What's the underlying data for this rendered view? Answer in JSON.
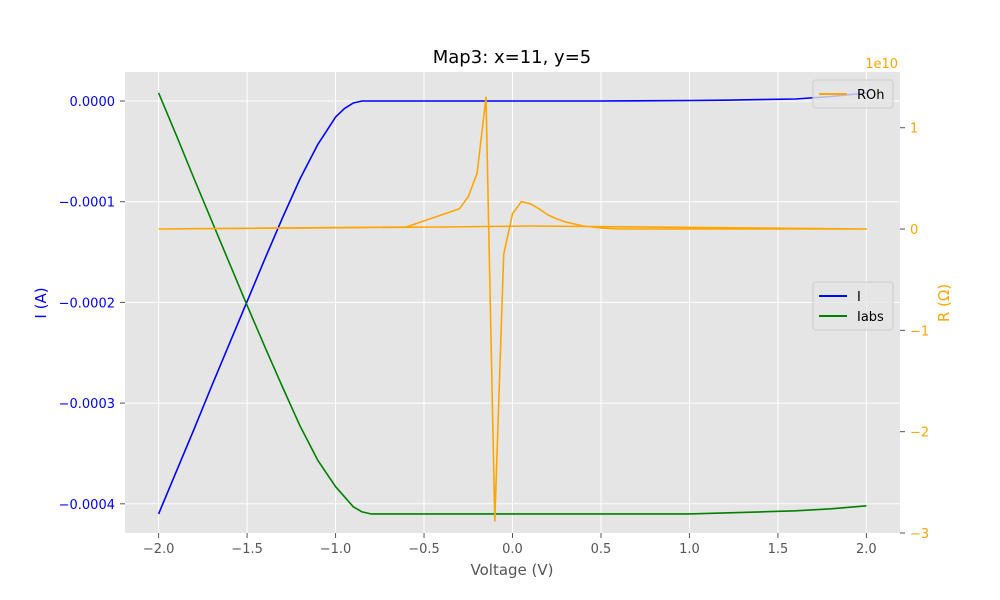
{
  "chart_data": {
    "type": "line",
    "title": "Map3: x=11, y=5",
    "xlabel": "Voltage (V)",
    "ylabel_left": "I (A)",
    "ylabel_right": "R (Ω)",
    "right_axis_multiplier": "1e10",
    "xlim": [
      -2.19,
      2.19
    ],
    "ylim_left": [
      -0.000429,
      2.88e-05
    ],
    "ylim_right": [
      -30000000000.0,
      15500000000.0
    ],
    "x_ticks": [
      "−2.0",
      "−1.5",
      "−1.0",
      "−0.5",
      "0.0",
      "0.5",
      "1.0",
      "1.5",
      "2.0"
    ],
    "x_tick_values": [
      -2.0,
      -1.5,
      -1.0,
      -0.5,
      0.0,
      0.5,
      1.0,
      1.5,
      2.0
    ],
    "left_ticks": [
      "0.0000",
      "−0.0001",
      "−0.0002",
      "−0.0003",
      "−0.0004"
    ],
    "left_tick_values": [
      0.0,
      -0.0001,
      -0.0002,
      -0.0003,
      -0.0004
    ],
    "right_ticks": [
      "1",
      "0",
      "−1",
      "−2",
      "−3"
    ],
    "right_tick_values": [
      10000000000.0,
      0.0,
      -10000000000.0,
      -20000000000.0,
      -30000000000.0
    ],
    "grid": true,
    "legend_left": {
      "placement": "center-right",
      "entries": [
        "I",
        "Iabs"
      ]
    },
    "legend_right": {
      "placement": "top-right",
      "entries": [
        "ROh"
      ]
    },
    "colors": {
      "I": "#0000ff",
      "Iabs": "#008000",
      "ROh": "#ffa500",
      "background": "#e5e5e5",
      "grid": "#ffffff"
    },
    "series": [
      {
        "name": "I",
        "axis": "left",
        "color": "#0000ff",
        "x": [
          -2.0,
          -1.9,
          -1.8,
          -1.7,
          -1.6,
          -1.5,
          -1.4,
          -1.3,
          -1.2,
          -1.1,
          -1.0,
          -0.95,
          -0.9,
          -0.85,
          -0.8,
          -0.75,
          -0.7,
          -0.5,
          0.0,
          0.5,
          1.0,
          1.2,
          1.4,
          1.6,
          1.8,
          2.0
        ],
        "y": [
          -0.00041,
          -0.000368,
          -0.000326,
          -0.000283,
          -0.000241,
          -0.000199,
          -0.000157,
          -0.000116,
          -7.7e-05,
          -4.3e-05,
          -1.6e-05,
          -7.5e-06,
          -2e-06,
          0.0,
          0.0,
          0.0,
          0.0,
          0.0,
          0.0,
          0.0,
          5e-07,
          8e-07,
          1.4e-06,
          2e-06,
          4.5e-06,
          8e-06
        ]
      },
      {
        "name": "Iabs",
        "axis": "left",
        "color": "#008000",
        "x": [
          -2.0,
          -1.9,
          -1.8,
          -1.7,
          -1.6,
          -1.5,
          -1.4,
          -1.3,
          -1.2,
          -1.1,
          -1.0,
          -0.9,
          -0.85,
          -0.8,
          -0.75,
          -0.7,
          -0.5,
          0.0,
          0.5,
          1.0,
          1.2,
          1.4,
          1.6,
          1.8,
          2.0
        ],
        "y": [
          8e-06,
          -3.4e-05,
          -7.7e-05,
          -0.000119,
          -0.000161,
          -0.000203,
          -0.000244,
          -0.000284,
          -0.000323,
          -0.000357,
          -0.000383,
          -0.000403,
          -0.000408,
          -0.00041,
          -0.00041,
          -0.00041,
          -0.00041,
          -0.00041,
          -0.00041,
          -0.00041,
          -0.000409,
          -0.000408,
          -0.000407,
          -0.000405,
          -0.000402
        ]
      },
      {
        "name": "ROh",
        "axis": "right",
        "color": "#ffa500",
        "x": [
          -2.0,
          -0.6,
          -0.5,
          -0.4,
          -0.3,
          -0.25,
          -0.2,
          -0.15,
          -0.1,
          -0.05,
          0.0,
          0.05,
          0.1,
          0.15,
          0.2,
          0.25,
          0.3,
          0.35,
          0.4,
          0.5,
          0.6,
          0.8,
          1.0,
          2.0,
          0.1,
          -0.4,
          -2.0
        ],
        "y": [
          0.0,
          200000000.0,
          800000000.0,
          1400000000.0,
          2000000000.0,
          3200000000.0,
          5500000000.0,
          13000000000.0,
          -28800000000.0,
          -2500000000.0,
          1500000000.0,
          2700000000.0,
          2500000000.0,
          2000000000.0,
          1400000000.0,
          1000000000.0,
          700000000.0,
          500000000.0,
          300000000.0,
          100000000.0,
          0.0,
          0.0,
          0.0,
          0.0,
          300000000.0,
          200000000.0,
          0.0
        ]
      }
    ]
  }
}
